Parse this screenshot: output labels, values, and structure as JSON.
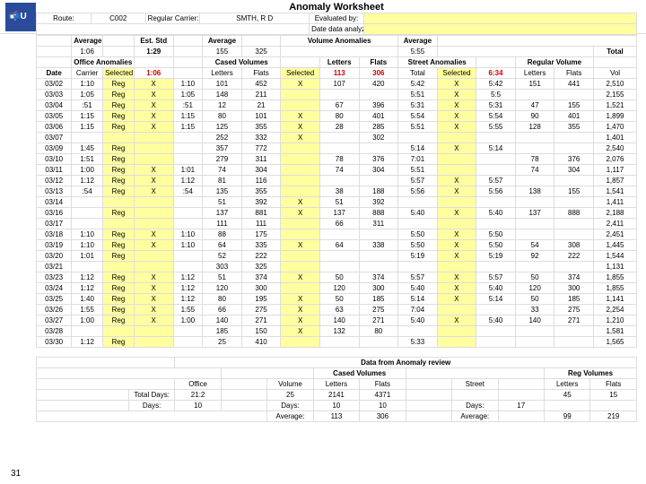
{
  "header": {
    "left_text": "U",
    "page_number": "31"
  },
  "title": "Anomaly Worksheet",
  "meta": {
    "route_label": "Route:",
    "route_value": "C002",
    "carrier_label": "Regular Carrier:",
    "carrier_value": "SMTH, R D",
    "eval_label": "Evaluated by:",
    "date_label": "Date data analyzed:"
  },
  "section_headers": {
    "average1": "Average",
    "eststd": "Est. Std",
    "average2": "Average",
    "volumeanom": "Volume Anomalies",
    "average3": "Average",
    "office": "Office Anomalies",
    "casedvol": "Cased Volumes",
    "letters": "Letters",
    "flats": "Flats",
    "street": "Street Anomalies",
    "regvol": "Regular Volume",
    "total": "Total"
  },
  "avg_row": {
    "a1": "1:06",
    "std": "1:29",
    "a2": "155",
    "a2b": "325",
    "a3": "5:55"
  },
  "col_headers": {
    "date": "Date",
    "carrier": "Carrier",
    "selected1": "Selected",
    "t1": "1:06",
    "letters": "Letters",
    "flats": "Flats",
    "selected2": "Selected",
    "v1": "113",
    "v2": "306",
    "total2": "Total",
    "selected3": "Selected",
    "s1": "6:34",
    "lettersR": "Letters",
    "flatsR": "Flats",
    "vol": "Vol"
  },
  "rows": [
    {
      "d": "03/02",
      "c": "1:10",
      "r": "Reg",
      "x": "X",
      "t": "1:10",
      "l": "101",
      "f": "452",
      "s2": "X",
      "vl": "107",
      "vf": "420",
      "st": "5:42",
      "x3": "X",
      "sv": "5:42",
      "rl": "151",
      "rf": "441",
      "tv": "2,510"
    },
    {
      "d": "03/03",
      "c": "1:05",
      "r": "Reg",
      "x": "X",
      "t": "1:05",
      "l": "148",
      "f": "211",
      "s2": "",
      "vl": "",
      "vf": "",
      "st": "5:51",
      "x3": "X",
      "sv": "5:5",
      "rl": "",
      "rf": "",
      "tv": "2,155"
    },
    {
      "d": "03/04",
      "c": ":51",
      "r": "Reg",
      "x": "X",
      "t": ":51",
      "l": "12",
      "f": "21",
      "s2": "",
      "vl": "67",
      "vf": "396",
      "st": "5:31",
      "x3": "X",
      "sv": "5:31",
      "rl": "47",
      "rf": "155",
      "tv": "1,521"
    },
    {
      "d": "03/05",
      "c": "1:15",
      "r": "Reg",
      "x": "X",
      "t": "1:15",
      "l": "80",
      "f": "101",
      "s2": "X",
      "vl": "80",
      "vf": "401",
      "st": "5:54",
      "x3": "X",
      "sv": "5:54",
      "rl": "90",
      "rf": "401",
      "tv": "1,899"
    },
    {
      "d": "03/06",
      "c": "1:15",
      "r": "Reg",
      "x": "X",
      "t": "1:15",
      "l": "125",
      "f": "355",
      "s2": "X",
      "vl": "28",
      "vf": "285",
      "st": "5:51",
      "x3": "X",
      "sv": "5:55",
      "rl": "128",
      "rf": "355",
      "tv": "1,470"
    },
    {
      "d": "03/07",
      "c": "",
      "r": "",
      "x": "",
      "t": "",
      "l": "252",
      "f": "332",
      "s2": "X",
      "vl": "",
      "vf": "302",
      "st": "",
      "x3": "",
      "sv": "",
      "rl": "",
      "rf": "",
      "tv": "1,401"
    },
    {
      "d": "03/09",
      "c": "1:45",
      "r": "Reg",
      "x": "",
      "t": "",
      "l": "357",
      "f": "772",
      "s2": "",
      "vl": "",
      "vf": "",
      "st": "5:14",
      "x3": "X",
      "sv": "5:14",
      "rl": "",
      "rf": "",
      "tv": "2,540"
    },
    {
      "d": "03/10",
      "c": "1:51",
      "r": "Reg",
      "x": "",
      "t": "",
      "l": "279",
      "f": "311",
      "s2": "",
      "vl": "78",
      "vf": "376",
      "st": "7:01",
      "x3": "",
      "sv": "",
      "rl": "78",
      "rf": "376",
      "tv": "2,076"
    },
    {
      "d": "03/11",
      "c": "1:00",
      "r": "Reg",
      "x": "X",
      "t": "1:01",
      "l": "74",
      "f": "304",
      "s2": "",
      "vl": "74",
      "vf": "304",
      "st": "5:51",
      "x3": "",
      "sv": "",
      "rl": "74",
      "rf": "304",
      "tv": "1,117"
    },
    {
      "d": "03/12",
      "c": "1:12",
      "r": "Reg",
      "x": "X",
      "t": "1:12",
      "l": "81",
      "f": "116",
      "s2": "",
      "vl": "",
      "vf": "",
      "st": "5:57",
      "x3": "X",
      "sv": "5:57",
      "rl": "",
      "rf": "",
      "tv": "1,857"
    },
    {
      "d": "03/13",
      "c": ":54",
      "r": "Reg",
      "x": "X",
      "t": ":54",
      "l": "135",
      "f": "355",
      "s2": "",
      "vl": "38",
      "vf": "188",
      "st": "5:56",
      "x3": "X",
      "sv": "5:56",
      "rl": "138",
      "rf": "155",
      "tv": "1,541"
    },
    {
      "d": "03/14",
      "c": "",
      "r": "",
      "x": "",
      "t": "",
      "l": "51",
      "f": "392",
      "s2": "X",
      "vl": "51",
      "vf": "392",
      "st": "",
      "x3": "",
      "sv": "",
      "rl": "",
      "rf": "",
      "tv": "1,411"
    },
    {
      "d": "03/16",
      "c": "",
      "r": "Reg",
      "x": "",
      "t": "",
      "l": "137",
      "f": "881",
      "s2": "X",
      "vl": "137",
      "vf": "888",
      "st": "5:40",
      "x3": "X",
      "sv": "5:40",
      "rl": "137",
      "rf": "888",
      "tv": "2,188"
    },
    {
      "d": "03/17",
      "c": "",
      "r": "",
      "x": "",
      "t": "",
      "l": "111",
      "f": "111",
      "s2": "",
      "vl": "66",
      "vf": "311",
      "st": "",
      "x3": "",
      "sv": "",
      "rl": "",
      "rf": "",
      "tv": "2,411"
    },
    {
      "d": "03/18",
      "c": "1:10",
      "r": "Reg",
      "x": "X",
      "t": "1:10",
      "l": "88",
      "f": "175",
      "s2": "",
      "vl": "",
      "vf": "",
      "st": "5:50",
      "x3": "X",
      "sv": "5:50",
      "rl": "",
      "rf": "",
      "tv": "2,451"
    },
    {
      "d": "03/19",
      "c": "1:10",
      "r": "Reg",
      "x": "X",
      "t": "1:10",
      "l": "64",
      "f": "335",
      "s2": "X",
      "vl": "64",
      "vf": "338",
      "st": "5:50",
      "x3": "X",
      "sv": "5:50",
      "rl": "54",
      "rf": "308",
      "tv": "1,445"
    },
    {
      "d": "03/20",
      "c": "1:01",
      "r": "Reg",
      "x": "",
      "t": "",
      "l": "52",
      "f": "222",
      "s2": "",
      "vl": "",
      "vf": "",
      "st": "5:19",
      "x3": "X",
      "sv": "5:19",
      "rl": "92",
      "rf": "222",
      "tv": "1,544"
    },
    {
      "d": "03/21",
      "c": "",
      "r": "",
      "x": "",
      "t": "",
      "l": "303",
      "f": "325",
      "s2": "",
      "vl": "",
      "vf": "",
      "st": "",
      "x3": "",
      "sv": "",
      "rl": "",
      "rf": "",
      "tv": "1,131"
    },
    {
      "d": "03/23",
      "c": "1:12",
      "r": "Reg",
      "x": "X",
      "t": "1:12",
      "l": "51",
      "f": "374",
      "s2": "X",
      "vl": "50",
      "vf": "374",
      "st": "5:57",
      "x3": "X",
      "sv": "5:57",
      "rl": "50",
      "rf": "374",
      "tv": "1,855"
    },
    {
      "d": "03/24",
      "c": "1:12",
      "r": "Reg",
      "x": "X",
      "t": "1:12",
      "l": "120",
      "f": "300",
      "s2": "",
      "vl": "120",
      "vf": "300",
      "st": "5:40",
      "x3": "X",
      "sv": "5:40",
      "rl": "120",
      "rf": "300",
      "tv": "1,855"
    },
    {
      "d": "03/25",
      "c": "1:40",
      "r": "Reg",
      "x": "X",
      "t": "1:12",
      "l": "80",
      "f": "195",
      "s2": "X",
      "vl": "50",
      "vf": "185",
      "st": "5:14",
      "x3": "X",
      "sv": "5:14",
      "rl": "50",
      "rf": "185",
      "tv": "1,141"
    },
    {
      "d": "03/26",
      "c": "1:55",
      "r": "Reg",
      "x": "X",
      "t": "1:55",
      "l": "66",
      "f": "275",
      "s2": "X",
      "vl": "63",
      "vf": "275",
      "st": "7:04",
      "x3": "",
      "sv": "",
      "rl": "33",
      "rf": "275",
      "tv": "2,254"
    },
    {
      "d": "03/27",
      "c": "1:00",
      "r": "Reg",
      "x": "X",
      "t": "1:00",
      "l": "140",
      "f": "271",
      "s2": "X",
      "vl": "140",
      "vf": "271",
      "st": "5:40",
      "x3": "X",
      "sv": "5:40",
      "rl": "140",
      "rf": "271",
      "tv": "1,210"
    },
    {
      "d": "03/28",
      "c": "",
      "r": "",
      "x": "",
      "t": "",
      "l": "185",
      "f": "150",
      "s2": "X",
      "vl": "132",
      "vf": "80",
      "st": "",
      "x3": "",
      "sv": "",
      "rl": "",
      "rf": "",
      "tv": "1,581"
    },
    {
      "d": "03/30",
      "c": "1:12",
      "r": "Reg",
      "x": "",
      "t": "",
      "l": "25",
      "f": "410",
      "s2": "",
      "vl": "",
      "vf": "",
      "st": "5:33",
      "x3": "",
      "sv": "",
      "rl": "",
      "rf": "",
      "tv": "1,565"
    }
  ],
  "summary": {
    "title": "Data from Anomaly review",
    "labels": {
      "office": "Office",
      "volume": "Volume",
      "casedvol": "Cased Volumes",
      "letters": "Letters",
      "flats": "Flats",
      "street": "Street",
      "regvol": "Reg Volumes",
      "lettersR": "Letters",
      "flatsR": "Flats",
      "totaldays": "Total Days:",
      "days": "Days:",
      "average": "Average:"
    },
    "vals": {
      "office_total": "21:2",
      "vol_days": "25",
      "letters_total": "2141",
      "flats_total": "4371",
      "street_days": "17",
      "regL": "45",
      "regF": "15",
      "days_office": "10",
      "letters_days": "10",
      "flats_days": "10",
      "street_d": "17",
      "avg_l": "113",
      "avg_f": "306",
      "avg_s": "Average:",
      "avg_rl": "99",
      "avg_rf": "219"
    }
  }
}
